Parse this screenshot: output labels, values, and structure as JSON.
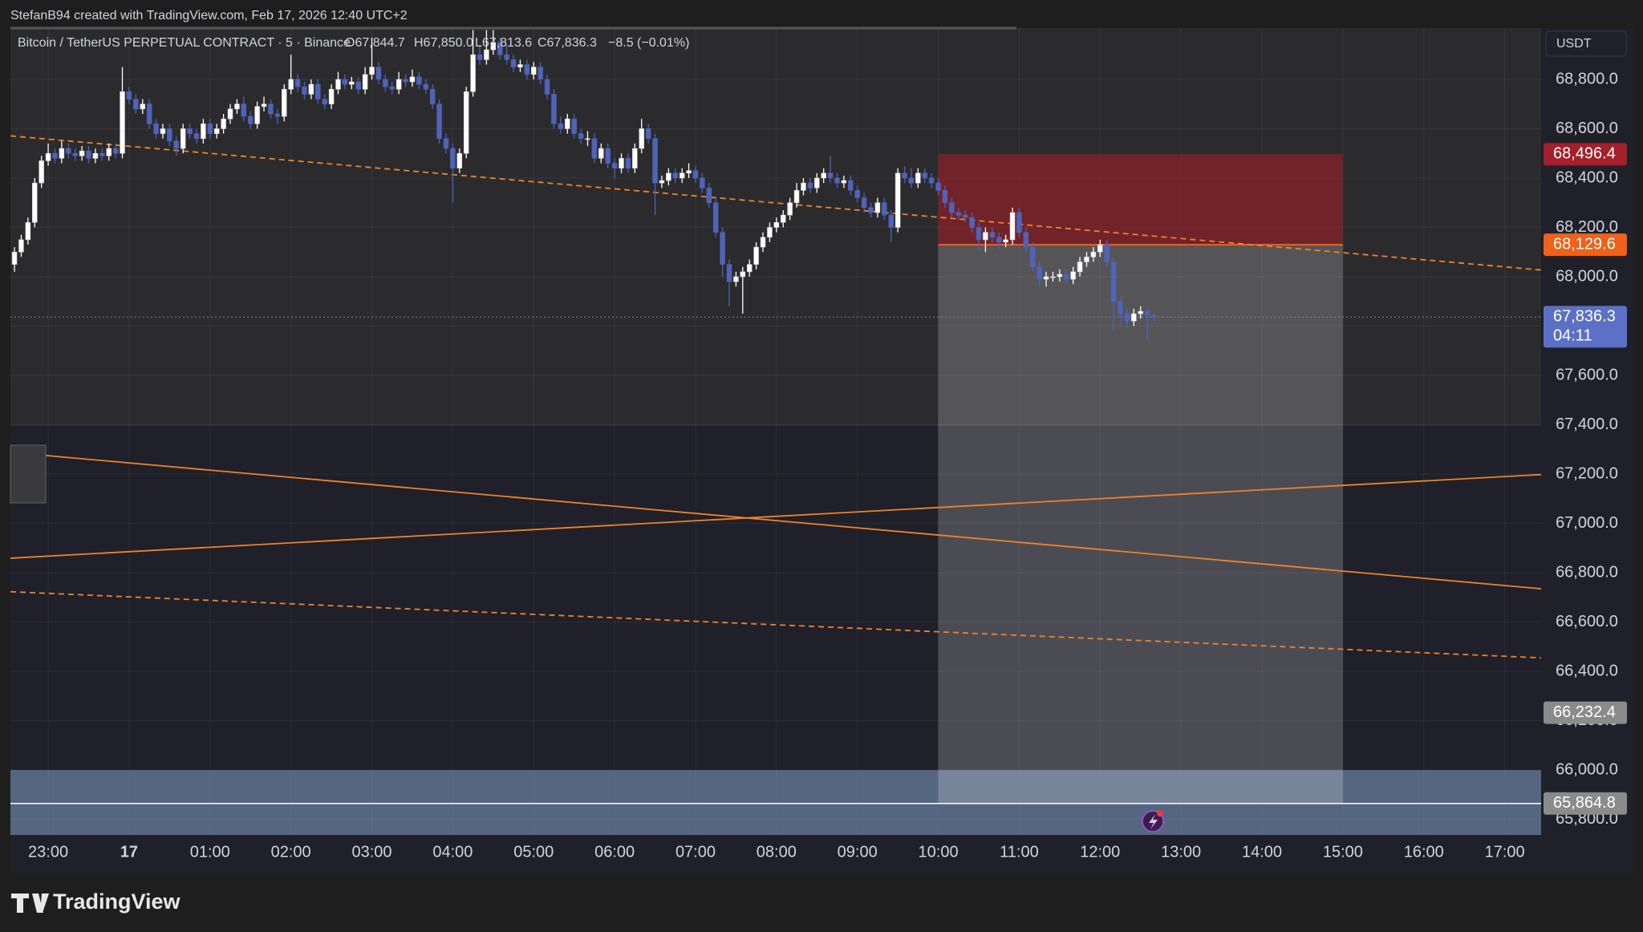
{
  "header": {
    "attribution": "StefanB94 created with TradingView.com, Feb 17, 2026 12:40 UTC+2"
  },
  "footer": {
    "brand": "TradingView"
  },
  "chart_data": {
    "type": "candlestick",
    "legend": {
      "symbol": "Bitcoin / TetherUS PERPETUAL CONTRACT · 5 · Binance",
      "open": "O67,844.7",
      "high": "H67,850.0",
      "low": "L67,813.6",
      "close": "C67,836.3",
      "change": "−8.5 (−0.01%)"
    },
    "currency": "USDT",
    "up_color": "#ffffff",
    "down_color": "#4f63b8",
    "grid": true,
    "xlim": [
      -88,
      1047
    ],
    "ylim": [
      65737,
      69008
    ],
    "xticks": [
      {
        "value": -60,
        "label": "23:00"
      },
      {
        "value": 0,
        "label": "17"
      },
      {
        "value": 60,
        "label": "01:00"
      },
      {
        "value": 120,
        "label": "02:00"
      },
      {
        "value": 180,
        "label": "03:00"
      },
      {
        "value": 240,
        "label": "04:00"
      },
      {
        "value": 300,
        "label": "05:00"
      },
      {
        "value": 360,
        "label": "06:00"
      },
      {
        "value": 420,
        "label": "07:00"
      },
      {
        "value": 480,
        "label": "08:00"
      },
      {
        "value": 540,
        "label": "09:00"
      },
      {
        "value": 600,
        "label": "10:00"
      },
      {
        "value": 660,
        "label": "11:00"
      },
      {
        "value": 720,
        "label": "12:00"
      },
      {
        "value": 780,
        "label": "13:00"
      },
      {
        "value": 840,
        "label": "14:00"
      },
      {
        "value": 900,
        "label": "15:00"
      },
      {
        "value": 960,
        "label": "16:00"
      },
      {
        "value": 1020,
        "label": "17:00"
      }
    ],
    "yticks": [
      {
        "value": 65800,
        "label": "65,800.0"
      },
      {
        "value": 66000,
        "label": "66,000.0"
      },
      {
        "value": 66200,
        "label": "66,200.0"
      },
      {
        "value": 66400,
        "label": "66,400.0"
      },
      {
        "value": 66600,
        "label": "66,600.0"
      },
      {
        "value": 66800,
        "label": "66,800.0"
      },
      {
        "value": 67000,
        "label": "67,000.0"
      },
      {
        "value": 67200,
        "label": "67,200.0"
      },
      {
        "value": 67400,
        "label": "67,400.0"
      },
      {
        "value": 67600,
        "label": "67,600.0"
      },
      {
        "value": 67800,
        "label": "67,800.0"
      },
      {
        "value": 68000,
        "label": "68,000.0"
      },
      {
        "value": 68200,
        "label": "68,200.0"
      },
      {
        "value": 68400,
        "label": "68,400.0"
      },
      {
        "value": 68600,
        "label": "68,600.0"
      },
      {
        "value": 68800,
        "label": "68,800.0"
      }
    ],
    "x": [
      -85,
      -80,
      -75,
      -70,
      -65,
      -60,
      -55,
      -50,
      -45,
      -40,
      -35,
      -30,
      -25,
      -20,
      -15,
      -10,
      -5,
      0,
      5,
      10,
      15,
      20,
      25,
      30,
      35,
      40,
      45,
      50,
      55,
      60,
      65,
      70,
      75,
      80,
      85,
      90,
      95,
      100,
      105,
      110,
      115,
      120,
      125,
      130,
      135,
      140,
      145,
      150,
      155,
      160,
      165,
      170,
      175,
      180,
      185,
      190,
      195,
      200,
      205,
      210,
      215,
      220,
      225,
      230,
      235,
      240,
      245,
      250,
      255,
      260,
      265,
      270,
      275,
      280,
      285,
      290,
      295,
      300,
      305,
      310,
      315,
      320,
      325,
      330,
      335,
      340,
      345,
      350,
      355,
      360,
      365,
      370,
      375,
      380,
      385,
      390,
      395,
      400,
      405,
      410,
      415,
      420,
      425,
      430,
      435,
      440,
      445,
      450,
      455,
      460,
      465,
      470,
      475,
      480,
      485,
      490,
      495,
      500,
      505,
      510,
      515,
      520,
      525,
      530,
      535,
      540,
      545,
      550,
      555,
      560,
      565,
      570,
      575,
      580,
      585,
      590,
      595,
      600,
      605,
      610,
      615,
      620,
      625,
      630,
      635,
      640,
      645,
      650,
      655,
      660,
      665,
      670,
      675,
      680,
      685,
      690,
      695,
      700,
      705,
      710,
      715,
      720,
      725,
      730,
      735,
      740,
      745,
      750,
      755,
      760
    ],
    "open": [
      68050,
      68100,
      68150,
      68220,
      68380,
      68470,
      68500,
      68480,
      68520,
      68500,
      68490,
      68510,
      68480,
      68500,
      68490,
      68520,
      68500,
      68750,
      68720,
      68680,
      68700,
      68620,
      68580,
      68600,
      68550,
      68520,
      68600,
      68580,
      68560,
      68620,
      68580,
      68600,
      68640,
      68680,
      68700,
      68650,
      68620,
      68690,
      68700,
      68660,
      68650,
      68760,
      68800,
      68770,
      68740,
      68780,
      68720,
      68700,
      68760,
      68800,
      68780,
      68790,
      68760,
      68820,
      68850,
      68800,
      68770,
      68760,
      68800,
      68790,
      68810,
      68780,
      68760,
      68700,
      68560,
      68520,
      68440,
      68500,
      68750,
      68900,
      68880,
      68920,
      68950,
      68900,
      68880,
      68850,
      68860,
      68820,
      68850,
      68800,
      68740,
      68620,
      68600,
      68640,
      68580,
      68560,
      68560,
      68480,
      68520,
      68460,
      68440,
      68480,
      68440,
      68520,
      68600,
      68560,
      68380,
      68390,
      68420,
      68400,
      68420,
      68430,
      68400,
      68360,
      68300,
      68180,
      68050,
      67980,
      68000,
      68020,
      68050,
      68120,
      68160,
      68200,
      68220,
      68250,
      68300,
      68350,
      68380,
      68360,
      68400,
      68420,
      68400,
      68380,
      68390,
      68350,
      68320,
      68280,
      68260,
      68300,
      68250,
      68200,
      68420,
      68400,
      68380,
      68420,
      68400,
      68380,
      68350,
      68300,
      68260,
      68250,
      68240,
      68200,
      68150,
      68180,
      68160,
      68140,
      68150,
      68260,
      68180,
      68120,
      68040,
      67990,
      68000,
      68000,
      68010,
      67990,
      68020,
      68060,
      68080,
      68100,
      68130,
      68060,
      67900,
      67850,
      67820,
      67850,
      67860,
      67844.7
    ],
    "high": [
      68120,
      68170,
      68240,
      68400,
      68490,
      68540,
      68520,
      68550,
      68540,
      68520,
      68530,
      68530,
      68520,
      68520,
      68540,
      68540,
      68850,
      68770,
      68740,
      68720,
      68720,
      68640,
      68620,
      68620,
      68570,
      68620,
      68620,
      68600,
      68640,
      68640,
      68620,
      68660,
      68700,
      68720,
      68730,
      68670,
      68710,
      68730,
      68720,
      68680,
      68780,
      68900,
      68820,
      68790,
      68800,
      68800,
      68740,
      68780,
      68830,
      68820,
      68810,
      68810,
      68850,
      68970,
      68870,
      68820,
      68790,
      68830,
      68820,
      68840,
      68830,
      68800,
      68780,
      68720,
      68580,
      68540,
      68520,
      68770,
      69000,
      68940,
      69000,
      69000,
      68970,
      68940,
      68900,
      68880,
      68880,
      68870,
      68870,
      68820,
      68760,
      68650,
      68660,
      68660,
      68600,
      68590,
      68580,
      68540,
      68540,
      68480,
      68500,
      68500,
      68540,
      68640,
      68620,
      68580,
      68410,
      68440,
      68440,
      68440,
      68460,
      68450,
      68420,
      68380,
      68320,
      68200,
      68070,
      68020,
      68040,
      68070,
      68140,
      68180,
      68220,
      68240,
      68270,
      68320,
      68380,
      68400,
      68400,
      68420,
      68440,
      68490,
      68420,
      68410,
      68410,
      68370,
      68340,
      68300,
      68320,
      68320,
      68270,
      68440,
      68450,
      68440,
      68440,
      68440,
      68420,
      68400,
      68370,
      68320,
      68280,
      68270,
      68260,
      68220,
      68200,
      68200,
      68180,
      68170,
      68280,
      68280,
      68200,
      68140,
      68060,
      68020,
      68020,
      68030,
      68030,
      68040,
      68080,
      68100,
      68120,
      68150,
      68150,
      68080,
      67920,
      67870,
      67870,
      67880,
      67880,
      67850
    ],
    "low": [
      68020,
      68080,
      68130,
      68200,
      68360,
      68450,
      68460,
      68460,
      68480,
      68470,
      68470,
      68460,
      68460,
      68470,
      68470,
      68480,
      68480,
      68700,
      68660,
      68660,
      68600,
      68560,
      68560,
      68530,
      68490,
      68500,
      68560,
      68540,
      68540,
      68560,
      68560,
      68580,
      68620,
      68660,
      68630,
      68600,
      68600,
      68670,
      68640,
      68620,
      68630,
      68740,
      68750,
      68720,
      68720,
      68700,
      68680,
      68680,
      68740,
      68760,
      68760,
      68740,
      68740,
      68800,
      68780,
      68750,
      68740,
      68740,
      68770,
      68770,
      68760,
      68740,
      68680,
      68540,
      68500,
      68300,
      68420,
      68480,
      68730,
      68860,
      68860,
      68900,
      68880,
      68860,
      68830,
      68830,
      68800,
      68800,
      68780,
      68720,
      68600,
      68580,
      68580,
      68560,
      68540,
      68530,
      68460,
      68460,
      68440,
      68400,
      68420,
      68420,
      68420,
      68500,
      68540,
      68250,
      68360,
      68370,
      68380,
      68380,
      68400,
      68380,
      68340,
      68280,
      68160,
      68000,
      67880,
      67960,
      67850,
      68000,
      68030,
      68100,
      68140,
      68180,
      68200,
      68230,
      68280,
      68330,
      68340,
      68340,
      68380,
      68380,
      68360,
      68360,
      68330,
      68300,
      68260,
      68240,
      68240,
      68230,
      68140,
      68180,
      68380,
      68360,
      68360,
      68380,
      68360,
      68330,
      68280,
      68240,
      68230,
      68220,
      68180,
      68110,
      68100,
      68140,
      68110,
      68120,
      68130,
      68160,
      68100,
      68020,
      67960,
      67960,
      67980,
      67980,
      67970,
      67970,
      68000,
      68040,
      68060,
      68080,
      68040,
      67780,
      67800,
      67790,
      67800,
      67830,
      67740,
      67813.6
    ],
    "close": [
      68100,
      68150,
      68220,
      68380,
      68470,
      68500,
      68480,
      68520,
      68500,
      68490,
      68510,
      68480,
      68500,
      68490,
      68520,
      68500,
      68750,
      68720,
      68680,
      68700,
      68620,
      68580,
      68600,
      68550,
      68520,
      68600,
      68580,
      68560,
      68620,
      68580,
      68600,
      68640,
      68680,
      68700,
      68650,
      68620,
      68690,
      68700,
      68660,
      68650,
      68760,
      68800,
      68770,
      68740,
      68780,
      68720,
      68700,
      68760,
      68800,
      68780,
      68790,
      68760,
      68820,
      68850,
      68800,
      68770,
      68760,
      68800,
      68790,
      68810,
      68780,
      68760,
      68700,
      68560,
      68520,
      68440,
      68500,
      68750,
      68900,
      68880,
      68920,
      68950,
      68900,
      68880,
      68850,
      68860,
      68820,
      68850,
      68800,
      68740,
      68620,
      68600,
      68640,
      68580,
      68560,
      68560,
      68480,
      68520,
      68460,
      68440,
      68480,
      68440,
      68520,
      68600,
      68560,
      68380,
      68390,
      68420,
      68400,
      68420,
      68430,
      68400,
      68360,
      68300,
      68180,
      68050,
      67980,
      68000,
      68020,
      68050,
      68120,
      68160,
      68200,
      68220,
      68250,
      68300,
      68350,
      68380,
      68360,
      68400,
      68420,
      68400,
      68380,
      68390,
      68350,
      68320,
      68280,
      68260,
      68300,
      68250,
      68200,
      68420,
      68400,
      68380,
      68420,
      68400,
      68380,
      68350,
      68300,
      68260,
      68250,
      68240,
      68200,
      68150,
      68180,
      68160,
      68140,
      68150,
      68260,
      68180,
      68120,
      68040,
      67990,
      68000,
      68000,
      68010,
      67990,
      68020,
      68060,
      68080,
      68100,
      68130,
      68060,
      67900,
      67850,
      67820,
      67850,
      67860,
      67844.7,
      67836.3
    ],
    "trend_lines": [
      {
        "points": [
          [
            -88,
            68571
          ],
          [
            1047,
            68027
          ]
        ],
        "dashed": true,
        "color": "#f0822a"
      },
      {
        "points": [
          [
            -88,
            67288
          ],
          [
            1047,
            66735
          ]
        ],
        "dashed": false,
        "color": "#f0822a"
      },
      {
        "points": [
          [
            -88,
            66859
          ],
          [
            1047,
            67198
          ]
        ],
        "dashed": false,
        "color": "#f0822a"
      },
      {
        "points": [
          [
            -88,
            66723
          ],
          [
            1047,
            66455
          ]
        ],
        "dashed": true,
        "color": "#f0822a"
      }
    ],
    "zone_top": 66000,
    "position": {
      "start": 600,
      "end": 900
    },
    "price_labels": [
      {
        "value": 68496.4,
        "label": "68,496.4",
        "color": "#a3202c"
      },
      {
        "value": 68129.6,
        "label": "68,129.6",
        "color": "#f0611a"
      },
      {
        "value": 67836.3,
        "label": "67,836.3",
        "sublabel": "04:11",
        "color": "#5b70c6"
      },
      {
        "value": 66232.4,
        "label": "66,232.4",
        "color": "#8b8b8b"
      },
      {
        "value": 65864.8,
        "label": "65,864.8",
        "color": "#8b8b8b"
      }
    ]
  }
}
